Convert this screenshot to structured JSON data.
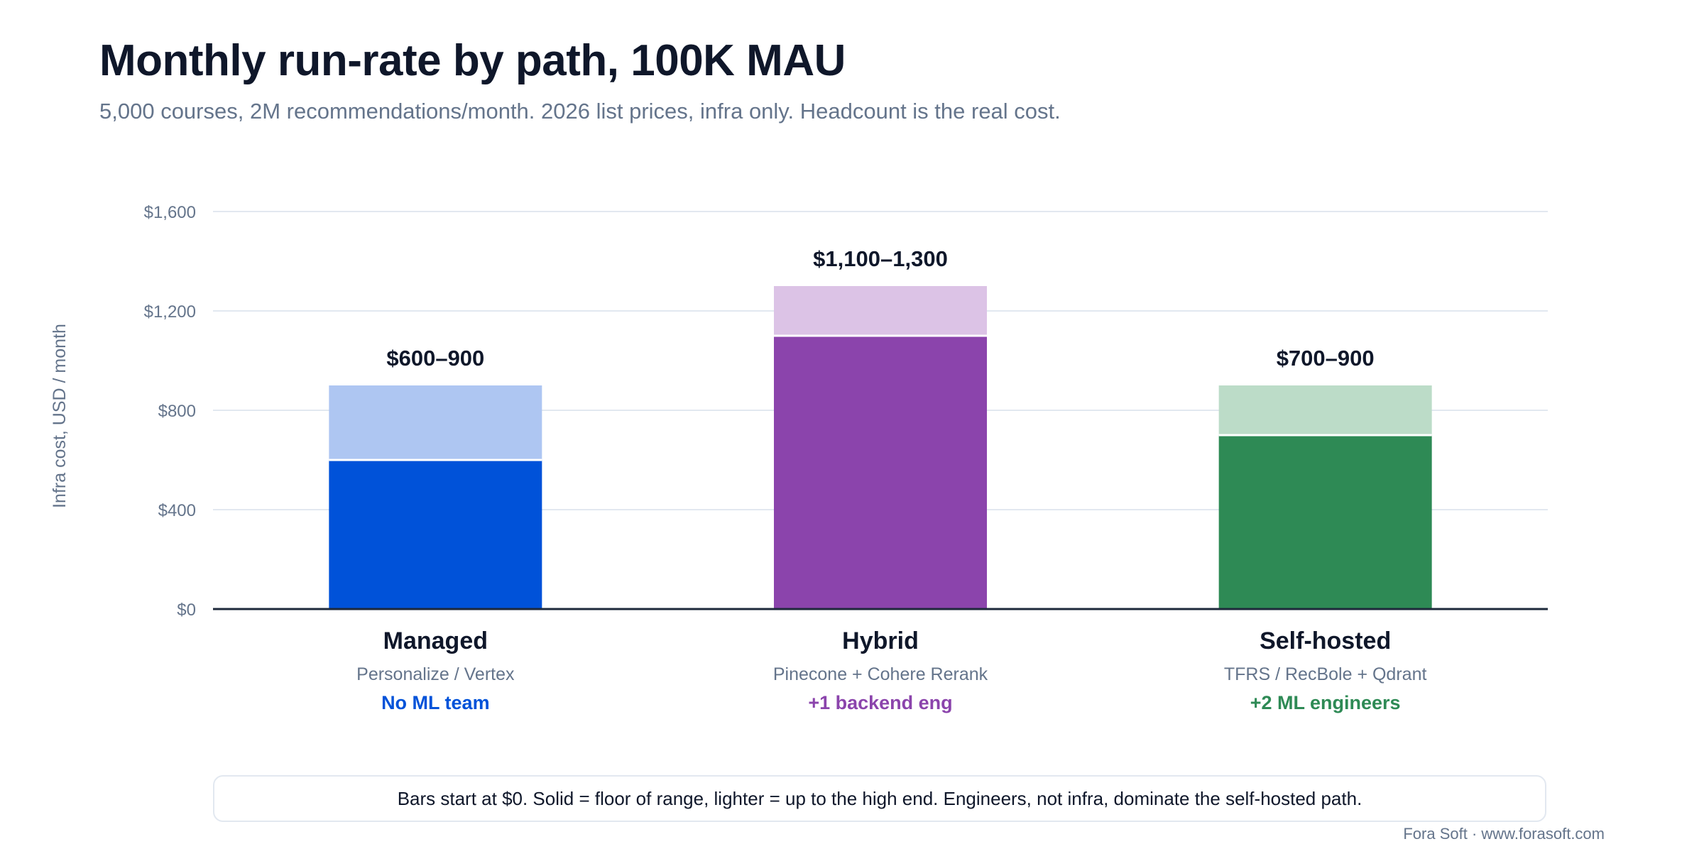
{
  "header": {
    "title": "Monthly run-rate by path, 100K MAU",
    "subtitle": "5,000 courses, 2M recommendations/month. 2026 list prices, infra only. Headcount is the real cost."
  },
  "chart_data": {
    "type": "bar",
    "stacked_range": true,
    "ylabel": "Infra cost, USD / month",
    "ylim": [
      0,
      1600
    ],
    "yticks": [
      0,
      400,
      800,
      1200,
      1600
    ],
    "ytick_labels": [
      "$0",
      "$400",
      "$800",
      "$1,200",
      "$1,600"
    ],
    "grid": true,
    "categories": [
      "Managed",
      "Hybrid",
      "Self-hosted"
    ],
    "series": [
      {
        "name": "Solid = floor of range",
        "values": [
          600,
          1100,
          700
        ]
      },
      {
        "name": "Lighter = up to the high end",
        "values": [
          900,
          1300,
          900
        ]
      }
    ],
    "bars": [
      {
        "label": "Managed",
        "low": 600,
        "high": 900,
        "value_label": "$600–900",
        "sublabel": "Personalize / Vertex",
        "team_label": "No ML team",
        "color": "#0052d9",
        "light_color": "#aec6f2"
      },
      {
        "label": "Hybrid",
        "low": 1100,
        "high": 1300,
        "value_label": "$1,100–1,300",
        "sublabel": "Pinecone + Cohere Rerank",
        "team_label": "+1 backend eng",
        "color": "#8b44ac",
        "light_color": "#dcc3e6"
      },
      {
        "label": "Self-hosted",
        "low": 700,
        "high": 900,
        "value_label": "$700–900",
        "sublabel": "TFRS / RecBole + Qdrant",
        "team_label": "+2 ML engineers",
        "color": "#2e8a55",
        "light_color": "#bcdcc8"
      }
    ]
  },
  "footer": {
    "note": "Bars start at $0. Solid = floor of range, lighter = up to the high end. Engineers, not infra, dominate the self-hosted path.",
    "source": "Fora Soft · www.forasoft.com"
  },
  "colors": {
    "text_dark": "#0f172a",
    "text_muted": "#64748b",
    "grid": "#e2e8f0",
    "axis": "#1e293b"
  }
}
